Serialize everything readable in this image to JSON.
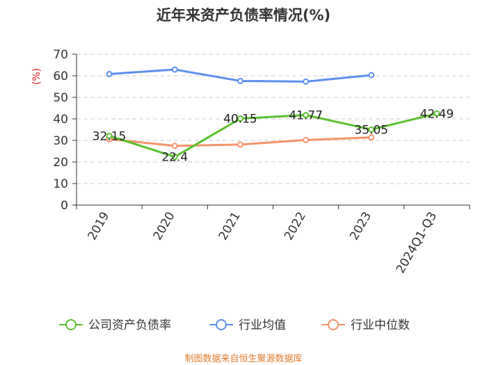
{
  "chart_data": {
    "type": "line",
    "title": "近年来资产负债率情况(%)",
    "ylabel": "(%)",
    "ylim": [
      0,
      70
    ],
    "yticks": [
      0,
      10,
      20,
      30,
      40,
      50,
      60,
      70
    ],
    "categories": [
      "2019",
      "2020",
      "2021",
      "2022",
      "2023",
      "2024Q1-Q3"
    ],
    "series": [
      {
        "name": "公司资产负债率",
        "color": "#5ac02c",
        "values": [
          32.15,
          22.4,
          40.15,
          41.77,
          35.05,
          42.49
        ],
        "labels": [
          "32.15",
          "22.4",
          "40.15",
          "41.77",
          "35.05",
          "42.49"
        ]
      },
      {
        "name": "行业均值",
        "color": "#5b8ff0",
        "values": [
          60.8,
          62.9,
          57.6,
          57.3,
          60.3,
          null
        ]
      },
      {
        "name": "行业中位数",
        "color": "#f5936a",
        "values": [
          30.6,
          27.5,
          28.1,
          30.2,
          31.4,
          null
        ]
      }
    ],
    "grid": true,
    "legend_position": "bottom"
  },
  "source": "制图数据来自恒生聚源数据库"
}
